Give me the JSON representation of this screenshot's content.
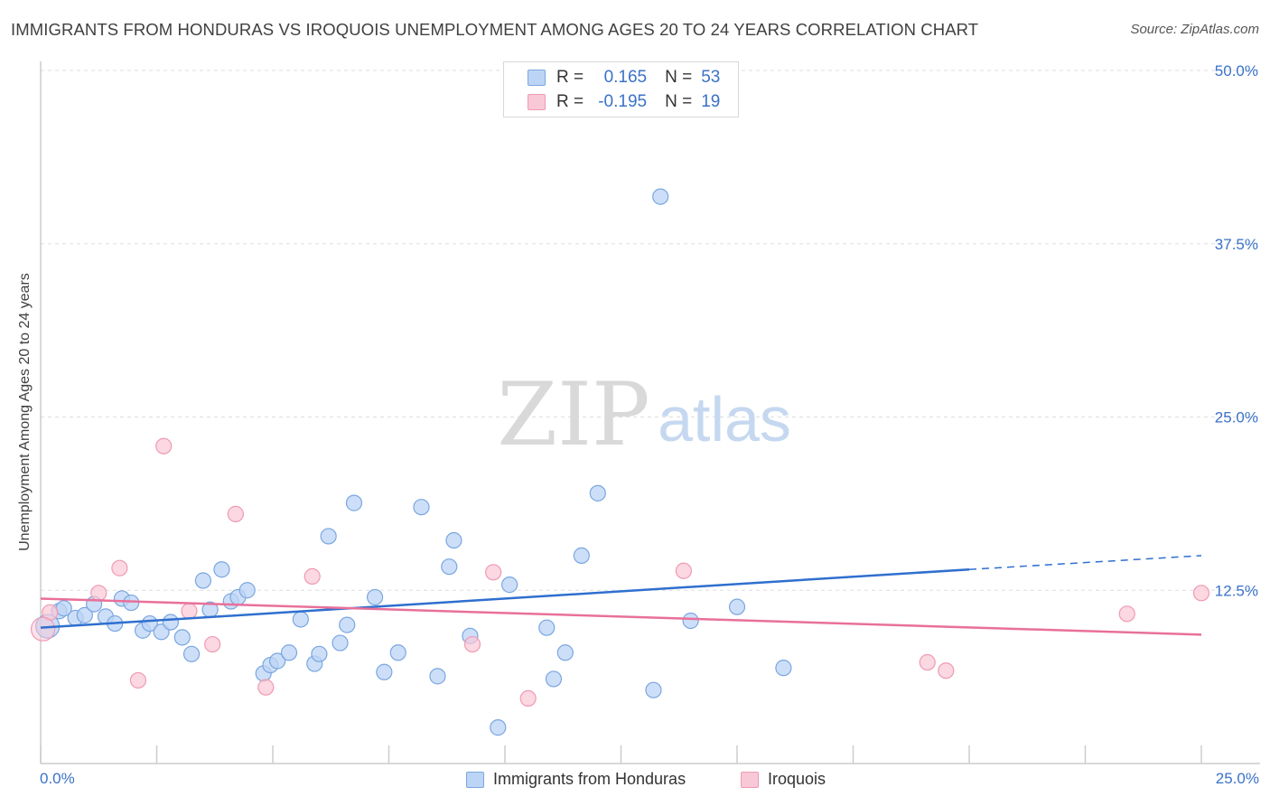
{
  "header": {
    "title": "IMMIGRANTS FROM HONDURAS VS IROQUOIS UNEMPLOYMENT AMONG AGES 20 TO 24 YEARS CORRELATION CHART",
    "source": "Source: ZipAtlas.com"
  },
  "watermark": {
    "zip": "ZIP",
    "atlas": "atlas"
  },
  "legend_top": {
    "rows": [
      {
        "r_label": "R =",
        "r_value": "0.165",
        "n_label": "N =",
        "n_value": "53"
      },
      {
        "r_label": "R =",
        "r_value": "-0.195",
        "n_label": "N =",
        "n_value": "19"
      }
    ]
  },
  "colors": {
    "series1_fill": "#bcd4f5",
    "series1_stroke": "#7aa6e0",
    "series1_line": "#2f6fcf",
    "series2_fill": "#f9c8d6",
    "series2_stroke": "#ef9ab3",
    "series2_line": "#e8709a",
    "axis_text": "#3a72c8",
    "grid": "#dddddd"
  },
  "chart_data": {
    "type": "scatter",
    "xlabel": "",
    "ylabel": "Unemployment Among Ages 20 to 24 years",
    "xlim": [
      0,
      25
    ],
    "ylim": [
      0,
      50
    ],
    "x_tick_labels": [
      "0.0%",
      "25.0%"
    ],
    "y_ticks": [
      12.5,
      25.0,
      37.5,
      50.0
    ],
    "y_tick_labels": [
      "12.5%",
      "25.0%",
      "37.5%",
      "50.0%"
    ],
    "grid": true,
    "legend_position": "bottom",
    "series": [
      {
        "name": "Immigrants from Honduras",
        "R": 0.165,
        "N": 53,
        "trend": {
          "x": [
            0,
            20
          ],
          "y": [
            9.8,
            14.0
          ],
          "dashed_to": [
            25,
            15.0
          ]
        },
        "points": [
          [
            0.15,
            9.9
          ],
          [
            0.4,
            11.0
          ],
          [
            0.5,
            11.2
          ],
          [
            0.75,
            10.5
          ],
          [
            0.95,
            10.7
          ],
          [
            1.15,
            11.5
          ],
          [
            1.4,
            10.6
          ],
          [
            1.6,
            10.1
          ],
          [
            1.75,
            11.9
          ],
          [
            1.95,
            11.6
          ],
          [
            2.2,
            9.6
          ],
          [
            2.35,
            10.1
          ],
          [
            2.6,
            9.5
          ],
          [
            2.8,
            10.2
          ],
          [
            3.05,
            9.1
          ],
          [
            3.25,
            7.9
          ],
          [
            3.5,
            13.2
          ],
          [
            3.65,
            11.1
          ],
          [
            3.9,
            14.0
          ],
          [
            4.1,
            11.7
          ],
          [
            4.25,
            12.0
          ],
          [
            4.45,
            12.5
          ],
          [
            4.8,
            6.5
          ],
          [
            4.95,
            7.1
          ],
          [
            5.1,
            7.4
          ],
          [
            5.35,
            8.0
          ],
          [
            5.6,
            10.4
          ],
          [
            5.9,
            7.2
          ],
          [
            6.0,
            7.9
          ],
          [
            6.2,
            16.4
          ],
          [
            6.45,
            8.7
          ],
          [
            6.6,
            10.0
          ],
          [
            6.75,
            18.8
          ],
          [
            7.2,
            12.0
          ],
          [
            7.4,
            6.6
          ],
          [
            7.7,
            8.0
          ],
          [
            8.2,
            18.5
          ],
          [
            8.55,
            6.3
          ],
          [
            8.8,
            14.2
          ],
          [
            8.9,
            16.1
          ],
          [
            9.25,
            9.2
          ],
          [
            9.85,
            2.6
          ],
          [
            10.1,
            12.9
          ],
          [
            10.9,
            9.8
          ],
          [
            11.05,
            6.1
          ],
          [
            11.3,
            8.0
          ],
          [
            11.65,
            15.0
          ],
          [
            12.0,
            19.5
          ],
          [
            13.2,
            5.3
          ],
          [
            13.35,
            40.9
          ],
          [
            14.0,
            10.3
          ],
          [
            15.0,
            11.3
          ],
          [
            16.0,
            6.9
          ]
        ]
      },
      {
        "name": "Iroquois",
        "R": -0.195,
        "N": 19,
        "trend": {
          "x": [
            0,
            25
          ],
          "y": [
            11.9,
            9.3
          ]
        },
        "points": [
          [
            0.2,
            10.9
          ],
          [
            1.25,
            12.3
          ],
          [
            1.7,
            14.1
          ],
          [
            2.1,
            6.0
          ],
          [
            2.65,
            22.9
          ],
          [
            3.2,
            11.0
          ],
          [
            3.7,
            8.6
          ],
          [
            4.2,
            18.0
          ],
          [
            4.85,
            5.5
          ],
          [
            5.85,
            13.5
          ],
          [
            9.3,
            8.6
          ],
          [
            9.75,
            13.8
          ],
          [
            10.5,
            4.7
          ],
          [
            13.85,
            13.9
          ],
          [
            19.1,
            7.3
          ],
          [
            19.5,
            6.7
          ],
          [
            23.4,
            10.8
          ],
          [
            25.0,
            12.3
          ],
          [
            0.05,
            9.7
          ]
        ]
      }
    ]
  }
}
